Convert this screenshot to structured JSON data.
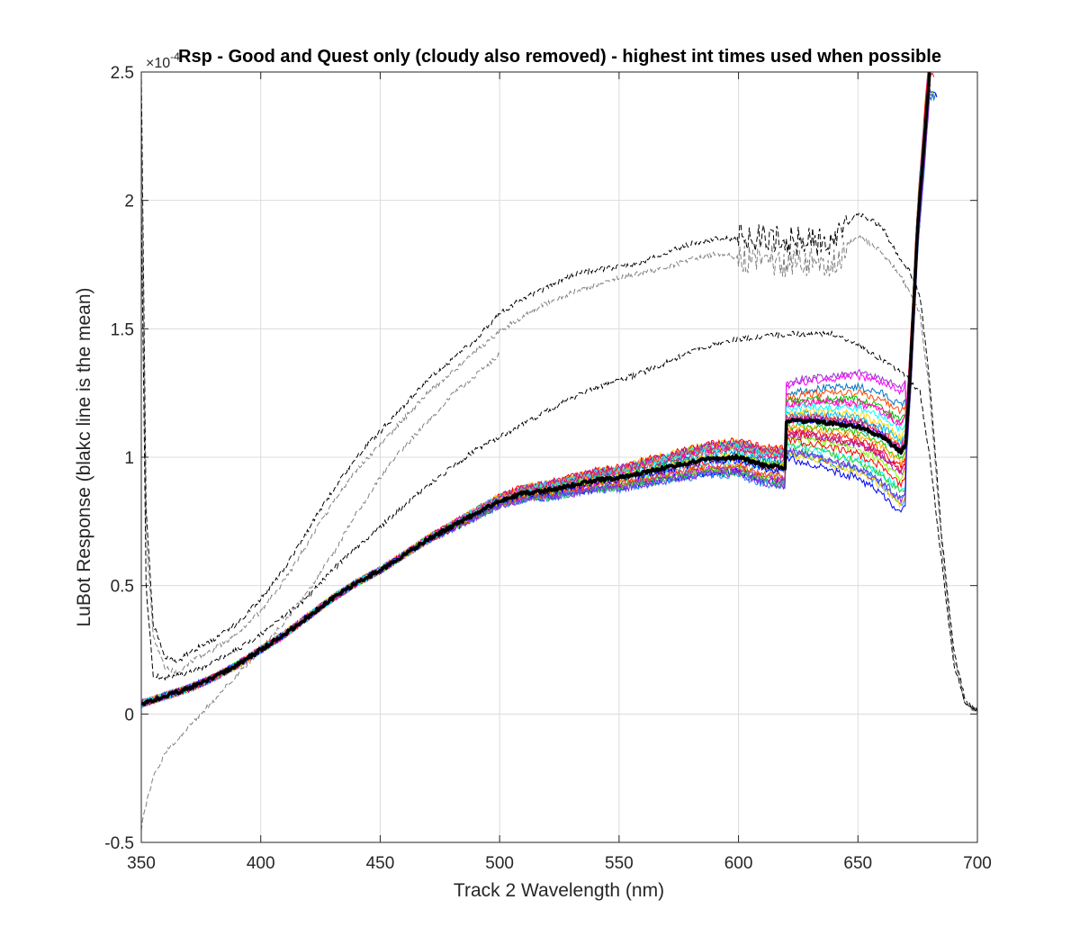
{
  "chart_data": {
    "type": "line",
    "title": "Rsp - Good and Quest only (cloudy also removed) - highest int times used when possible",
    "xlabel": "Track 2 Wavelength (nm)",
    "ylabel": "LuBot Response (blakc line is the mean)",
    "y_exponent_label": "×10",
    "y_exponent_power": "-4",
    "xlim": [
      350,
      700
    ],
    "ylim": [
      -0.5,
      2.5
    ],
    "x_ticks": [
      350,
      400,
      450,
      500,
      550,
      600,
      650,
      700
    ],
    "y_ticks": [
      -0.5,
      0,
      0.5,
      1,
      1.5,
      2,
      2.5
    ],
    "x_tick_labels": [
      "350",
      "400",
      "450",
      "500",
      "550",
      "600",
      "650",
      "700"
    ],
    "y_tick_labels": [
      "-0.5",
      "0",
      "0.5",
      "1",
      "1.5",
      "2",
      "2.5"
    ],
    "grid": true,
    "colors": {
      "mean": "#000000",
      "grid": "#dcdcdc",
      "axis": "#262626",
      "dashed_dark": "#000000",
      "dashed_gray": "#808080",
      "series_palette": [
        "#0072BD",
        "#FF00FF",
        "#FF0000",
        "#00C000",
        "#FFD700",
        "#00BFFF",
        "#8A2BE2",
        "#FF1493",
        "#FFA500",
        "#0000FF",
        "#00FFFF",
        "#C71585",
        "#7FFF00",
        "#1E90FF",
        "#DC143C",
        "#9932CC",
        "#32CD32",
        "#FF4500"
      ]
    },
    "series": [
      {
        "style": "mean",
        "x": [
          350,
          360,
          370,
          380,
          390,
          400,
          410,
          420,
          430,
          440,
          450,
          460,
          470,
          480,
          490,
          500,
          510,
          520,
          530,
          540,
          550,
          560,
          570,
          580,
          590,
          600,
          610,
          619.9,
          620,
          630,
          640,
          650,
          660,
          668,
          670,
          672,
          675,
          680
        ],
        "y": [
          0.04,
          0.07,
          0.1,
          0.14,
          0.19,
          0.25,
          0.31,
          0.38,
          0.45,
          0.51,
          0.56,
          0.62,
          0.68,
          0.73,
          0.78,
          0.83,
          0.86,
          0.87,
          0.89,
          0.91,
          0.92,
          0.94,
          0.96,
          0.98,
          0.995,
          1.0,
          0.97,
          0.96,
          1.14,
          1.14,
          1.13,
          1.12,
          1.08,
          1.02,
          1.05,
          1.35,
          1.9,
          2.5
        ]
      },
      {
        "style": "dashed-dark",
        "x": [
          350,
          352,
          355,
          360,
          365,
          370,
          380,
          390,
          400,
          410,
          420,
          430,
          440,
          450,
          460,
          470,
          480,
          490,
          500,
          510,
          520,
          530,
          540,
          550,
          560,
          570,
          580,
          590,
          600,
          610,
          620,
          630,
          640,
          645,
          650,
          660,
          668,
          672,
          676,
          680,
          685,
          690,
          695,
          700
        ],
        "y": [
          2.5,
          0.8,
          0.35,
          0.22,
          0.2,
          0.24,
          0.29,
          0.35,
          0.45,
          0.57,
          0.72,
          0.87,
          1.0,
          1.1,
          1.2,
          1.3,
          1.38,
          1.46,
          1.56,
          1.62,
          1.66,
          1.71,
          1.73,
          1.74,
          1.76,
          1.8,
          1.83,
          1.85,
          1.85,
          1.85,
          1.84,
          1.84,
          1.84,
          1.9,
          1.95,
          1.9,
          1.76,
          1.72,
          1.62,
          1.3,
          0.7,
          0.25,
          0.05,
          0.01
        ]
      },
      {
        "style": "dashed-gray",
        "x": [
          350,
          352,
          355,
          360,
          365,
          370,
          380,
          390,
          400,
          410,
          420,
          430,
          440,
          450,
          460,
          470,
          480,
          490,
          500,
          510,
          520,
          530,
          540,
          550,
          560,
          570,
          580,
          590,
          600,
          610,
          620,
          630,
          640,
          645,
          650,
          660,
          668,
          672,
          676,
          680,
          685,
          690,
          695,
          700
        ],
        "y": [
          2.3,
          0.7,
          0.3,
          0.18,
          0.16,
          0.2,
          0.25,
          0.31,
          0.4,
          0.52,
          0.67,
          0.82,
          0.95,
          1.05,
          1.15,
          1.25,
          1.33,
          1.41,
          1.49,
          1.55,
          1.6,
          1.64,
          1.67,
          1.7,
          1.72,
          1.74,
          1.77,
          1.79,
          1.78,
          1.77,
          1.76,
          1.76,
          1.76,
          1.82,
          1.86,
          1.8,
          1.7,
          1.64,
          1.56,
          1.25,
          0.66,
          0.22,
          0.04,
          0.01
        ]
      },
      {
        "style": "dashed-dark",
        "x": [
          350,
          352,
          355,
          360,
          370,
          380,
          390,
          400,
          410,
          420,
          430,
          440,
          450,
          460,
          470,
          480,
          490,
          500,
          510,
          520,
          530,
          540,
          550,
          560,
          570,
          580,
          590,
          600,
          610,
          620,
          630,
          640,
          650,
          660,
          668,
          672,
          676,
          680,
          685,
          690,
          695,
          700
        ],
        "y": [
          2.0,
          0.5,
          0.15,
          0.14,
          0.16,
          0.2,
          0.25,
          0.31,
          0.38,
          0.46,
          0.56,
          0.65,
          0.73,
          0.81,
          0.89,
          0.96,
          1.03,
          1.08,
          1.13,
          1.18,
          1.23,
          1.27,
          1.3,
          1.33,
          1.37,
          1.41,
          1.44,
          1.46,
          1.47,
          1.48,
          1.48,
          1.48,
          1.44,
          1.38,
          1.33,
          1.3,
          1.25,
          1.0,
          0.6,
          0.2,
          0.04,
          0.01
        ]
      },
      {
        "style": "dashed-gray",
        "x": [
          350,
          352,
          355,
          360,
          365,
          370,
          380,
          390,
          400,
          410,
          420,
          430,
          440,
          450,
          460,
          470,
          480,
          490,
          500
        ],
        "y": [
          -0.45,
          -0.35,
          -0.25,
          -0.15,
          -0.1,
          -0.05,
          0.05,
          0.15,
          0.25,
          0.36,
          0.48,
          0.62,
          0.78,
          0.92,
          1.04,
          1.14,
          1.24,
          1.32,
          1.4
        ]
      }
    ]
  }
}
